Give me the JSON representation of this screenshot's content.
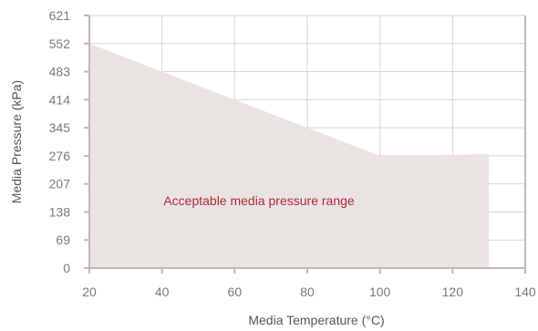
{
  "chart_data": {
    "type": "area",
    "title": "",
    "xlabel": "Media Temperature (°C)",
    "ylabel": "Media Pressure (kPa)",
    "xlim": [
      20,
      140
    ],
    "ylim": [
      0,
      621
    ],
    "xticks": [
      20,
      40,
      60,
      80,
      100,
      120,
      140
    ],
    "yticks": [
      0,
      69,
      138,
      207,
      276,
      345,
      414,
      483,
      552,
      621
    ],
    "grid": true,
    "series": [
      {
        "x": [
          20,
          100,
          130
        ],
        "y": [
          552,
          276,
          280
        ]
      }
    ],
    "annotations": [
      {
        "text": "Acceptable media pressure range",
        "x": 60,
        "y": 166
      }
    ],
    "colors": {
      "area": "#e9e4e1",
      "grid": "#d9d4d0",
      "axis": "#c2b8b2",
      "annotation": "#b0283a"
    }
  }
}
